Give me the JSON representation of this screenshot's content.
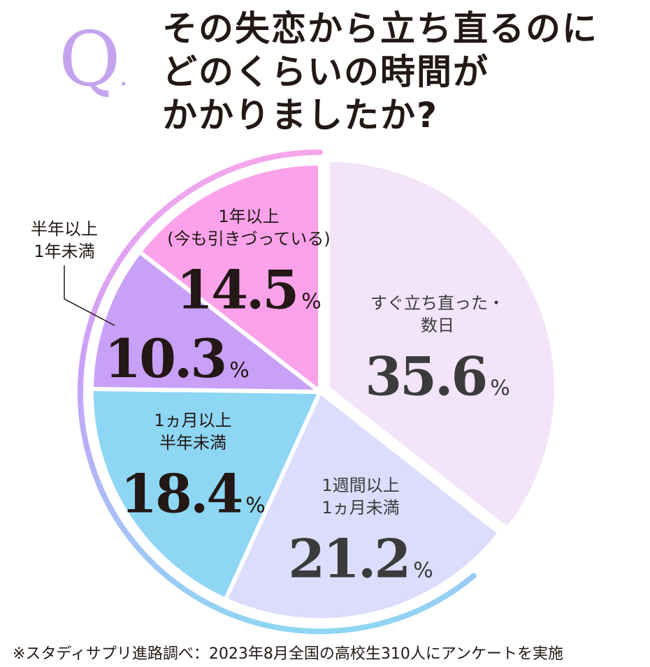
{
  "question": {
    "mark": "Q",
    "lines": [
      "その失恋から立ち直るのに",
      "どのくらいの時間が",
      "かかりましたか?"
    ]
  },
  "chart_data": {
    "type": "pie",
    "start_angle_deg": 0,
    "direction": "clockwise",
    "unit": "%",
    "slices": [
      {
        "label_lines": [
          "すぐ立ち直った・",
          "数日"
        ],
        "value": 35.6,
        "color": "#f3e4fa",
        "label_color": "#3b3b3b"
      },
      {
        "label_lines": [
          "1週間以上",
          "1ヵ月未満"
        ],
        "value": 21.2,
        "color": "#dcdcfd",
        "label_color": "#3b3b3b"
      },
      {
        "label_lines": [
          "1ヵ月以上",
          "半年未満"
        ],
        "value": 18.4,
        "color": "#8dd6f4",
        "label_color": "#231815"
      },
      {
        "label_lines": [
          "半年以上",
          "1年未満"
        ],
        "value": 10.3,
        "color": "#c9a0f8",
        "label_color": "#231815"
      },
      {
        "label_lines": [
          "1年以上",
          "(今も引きづっている)"
        ],
        "value": 14.5,
        "color": "#fba2ea",
        "label_color": "#231815"
      }
    ]
  },
  "footer": "※スタディサプリ進路調べ：2023年8月全国の高校生310人にアンケートを実施"
}
